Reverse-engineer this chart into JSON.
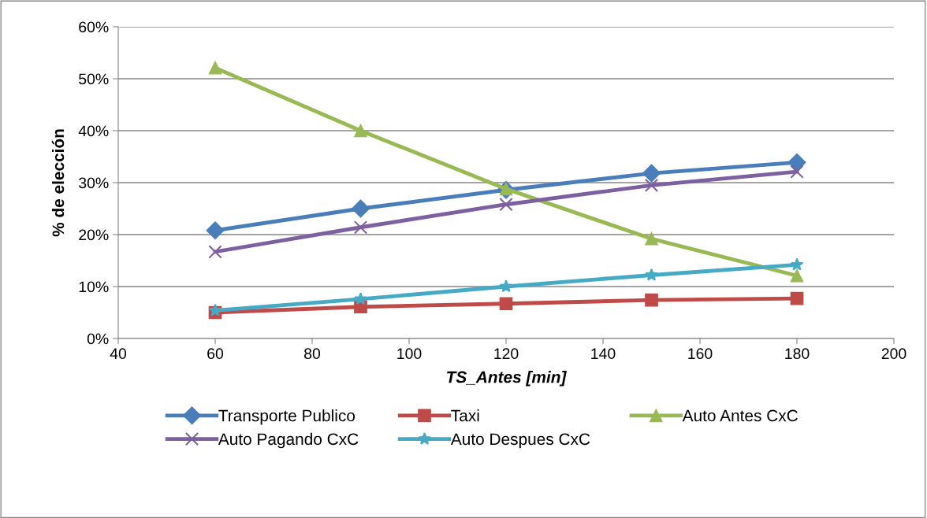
{
  "chart_data": {
    "type": "line",
    "xlabel": "TS_Antes [min]",
    "ylabel": "% de elección",
    "x": [
      60,
      90,
      120,
      150,
      180
    ],
    "series": [
      {
        "name": "Transporte Publico",
        "color": "#4a7ebb",
        "marker": "diamond",
        "values": [
          20.8,
          25.0,
          28.6,
          31.8,
          33.9
        ]
      },
      {
        "name": "Taxi",
        "color": "#be4b48",
        "marker": "square",
        "values": [
          5.0,
          6.1,
          6.7,
          7.4,
          7.7
        ]
      },
      {
        "name": "Auto Antes CxC",
        "color": "#98b954",
        "marker": "triangle",
        "values": [
          52.1,
          40.0,
          28.8,
          19.2,
          12.1
        ]
      },
      {
        "name": "Auto Pagando CxC",
        "color": "#7d60a0",
        "marker": "cross",
        "values": [
          16.7,
          21.4,
          25.8,
          29.5,
          32.1
        ]
      },
      {
        "name": "Auto Despues CxC",
        "color": "#46aac5",
        "marker": "star",
        "values": [
          5.4,
          7.6,
          10.0,
          12.2,
          14.2
        ]
      }
    ],
    "xlim": [
      40,
      200
    ],
    "xticks": [
      40,
      60,
      80,
      100,
      120,
      140,
      160,
      180,
      200
    ],
    "ylim": [
      0,
      60
    ],
    "yticks": [
      {
        "value": 0,
        "label": "0%"
      },
      {
        "value": 10,
        "label": "10%"
      },
      {
        "value": 20,
        "label": "20%"
      },
      {
        "value": 30,
        "label": "30%"
      },
      {
        "value": 40,
        "label": "40%"
      },
      {
        "value": 50,
        "label": "50%"
      },
      {
        "value": 60,
        "label": "60%"
      }
    ],
    "grid": "y",
    "legend": "bottom",
    "line_style": "solid"
  }
}
